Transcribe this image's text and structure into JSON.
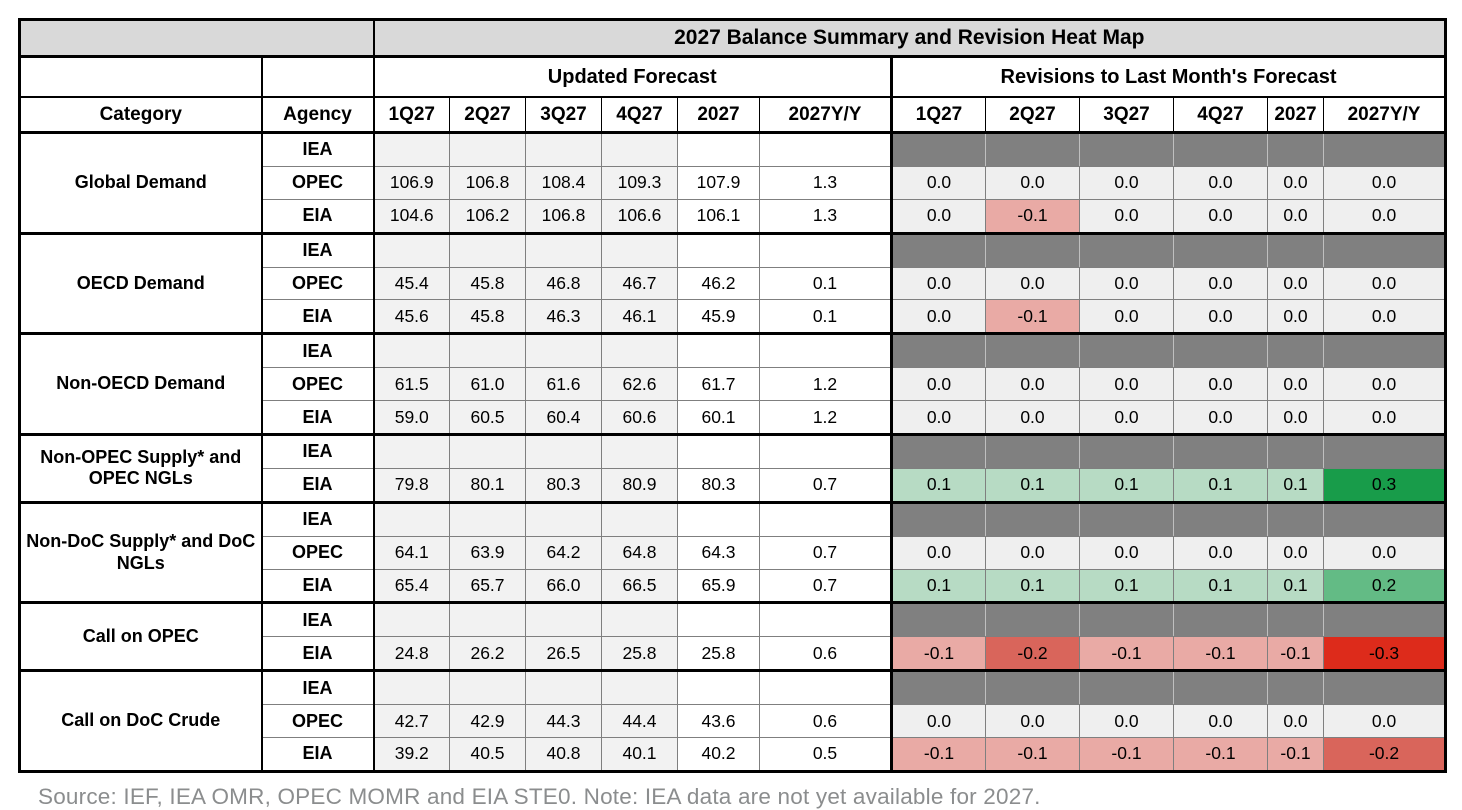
{
  "title": "2027 Balance Summary and Revision Heat Map",
  "sections": {
    "forecast": "Updated Forecast",
    "revisions": "Revisions to Last Month's Forecast"
  },
  "columns": {
    "category": "Category",
    "agency": "Agency",
    "quarters": [
      "1Q27",
      "2Q27",
      "3Q27",
      "4Q27",
      "2027",
      "2027Y/Y"
    ]
  },
  "groups": [
    {
      "category": "Global Demand",
      "rows": [
        {
          "agency": "IEA",
          "forecast": [
            "",
            "",
            "",
            "",
            "",
            ""
          ],
          "revisions": null
        },
        {
          "agency": "OPEC",
          "forecast": [
            "106.9",
            "106.8",
            "108.4",
            "109.3",
            "107.9",
            "1.3"
          ],
          "revisions": [
            "0.0",
            "0.0",
            "0.0",
            "0.0",
            "0.0",
            "0.0"
          ]
        },
        {
          "agency": "EIA",
          "forecast": [
            "104.6",
            "106.2",
            "106.8",
            "106.6",
            "106.1",
            "1.3"
          ],
          "revisions": [
            "0.0",
            "-0.1",
            "0.0",
            "0.0",
            "0.0",
            "0.0"
          ]
        }
      ]
    },
    {
      "category": "OECD Demand",
      "rows": [
        {
          "agency": "IEA",
          "forecast": [
            "",
            "",
            "",
            "",
            "",
            ""
          ],
          "revisions": null
        },
        {
          "agency": "OPEC",
          "forecast": [
            "45.4",
            "45.8",
            "46.8",
            "46.7",
            "46.2",
            "0.1"
          ],
          "revisions": [
            "0.0",
            "0.0",
            "0.0",
            "0.0",
            "0.0",
            "0.0"
          ]
        },
        {
          "agency": "EIA",
          "forecast": [
            "45.6",
            "45.8",
            "46.3",
            "46.1",
            "45.9",
            "0.1"
          ],
          "revisions": [
            "0.0",
            "-0.1",
            "0.0",
            "0.0",
            "0.0",
            "0.0"
          ]
        }
      ]
    },
    {
      "category": "Non-OECD Demand",
      "rows": [
        {
          "agency": "IEA",
          "forecast": [
            "",
            "",
            "",
            "",
            "",
            ""
          ],
          "revisions": null
        },
        {
          "agency": "OPEC",
          "forecast": [
            "61.5",
            "61.0",
            "61.6",
            "62.6",
            "61.7",
            "1.2"
          ],
          "revisions": [
            "0.0",
            "0.0",
            "0.0",
            "0.0",
            "0.0",
            "0.0"
          ]
        },
        {
          "agency": "EIA",
          "forecast": [
            "59.0",
            "60.5",
            "60.4",
            "60.6",
            "60.1",
            "1.2"
          ],
          "revisions": [
            "0.0",
            "0.0",
            "0.0",
            "0.0",
            "0.0",
            "0.0"
          ]
        }
      ]
    },
    {
      "category": "Non-OPEC Supply* and OPEC NGLs",
      "rows": [
        {
          "agency": "IEA",
          "forecast": [
            "",
            "",
            "",
            "",
            "",
            ""
          ],
          "revisions": null
        },
        {
          "agency": "EIA",
          "forecast": [
            "79.8",
            "80.1",
            "80.3",
            "80.9",
            "80.3",
            "0.7"
          ],
          "revisions": [
            "0.1",
            "0.1",
            "0.1",
            "0.1",
            "0.1",
            "0.3"
          ]
        }
      ]
    },
    {
      "category": "Non-DoC Supply* and DoC NGLs",
      "rows": [
        {
          "agency": "IEA",
          "forecast": [
            "",
            "",
            "",
            "",
            "",
            ""
          ],
          "revisions": null
        },
        {
          "agency": "OPEC",
          "forecast": [
            "64.1",
            "63.9",
            "64.2",
            "64.8",
            "64.3",
            "0.7"
          ],
          "revisions": [
            "0.0",
            "0.0",
            "0.0",
            "0.0",
            "0.0",
            "0.0"
          ]
        },
        {
          "agency": "EIA",
          "forecast": [
            "65.4",
            "65.7",
            "66.0",
            "66.5",
            "65.9",
            "0.7"
          ],
          "revisions": [
            "0.1",
            "0.1",
            "0.1",
            "0.1",
            "0.1",
            "0.2"
          ]
        }
      ]
    },
    {
      "category": "Call on OPEC",
      "rows": [
        {
          "agency": "IEA",
          "forecast": [
            "",
            "",
            "",
            "",
            "",
            ""
          ],
          "revisions": null
        },
        {
          "agency": "EIA",
          "forecast": [
            "24.8",
            "26.2",
            "26.5",
            "25.8",
            "25.8",
            "0.6"
          ],
          "revisions": [
            "-0.1",
            "-0.2",
            "-0.1",
            "-0.1",
            "-0.1",
            "-0.3"
          ]
        }
      ]
    },
    {
      "category": "Call on DoC Crude",
      "rows": [
        {
          "agency": "IEA",
          "forecast": [
            "",
            "",
            "",
            "",
            "",
            ""
          ],
          "revisions": null
        },
        {
          "agency": "OPEC",
          "forecast": [
            "42.7",
            "42.9",
            "44.3",
            "44.4",
            "43.6",
            "0.6"
          ],
          "revisions": [
            "0.0",
            "0.0",
            "0.0",
            "0.0",
            "0.0",
            "0.0"
          ]
        },
        {
          "agency": "EIA",
          "forecast": [
            "39.2",
            "40.5",
            "40.8",
            "40.1",
            "40.2",
            "0.5"
          ],
          "revisions": [
            "-0.1",
            "-0.1",
            "-0.1",
            "-0.1",
            "-0.1",
            "-0.2"
          ]
        }
      ]
    }
  ],
  "footer": "Source: IEF, IEA OMR, OPEC MOMR and EIA STE0. Note: IEA data are not yet available for 2027.",
  "colors": {
    "title_bg": "#d9d9d9",
    "blocked_gray": "#808080",
    "neutral_revision": "#efefef",
    "forecast_quarter_bg": "#f2f2f2",
    "green_light": "#b7dbc4",
    "green_medium": "#63bb85",
    "green_strong": "#189c4a",
    "red_light": "#e9aaa5",
    "red_medium": "#d9655b",
    "red_strong": "#dd2b1b"
  }
}
